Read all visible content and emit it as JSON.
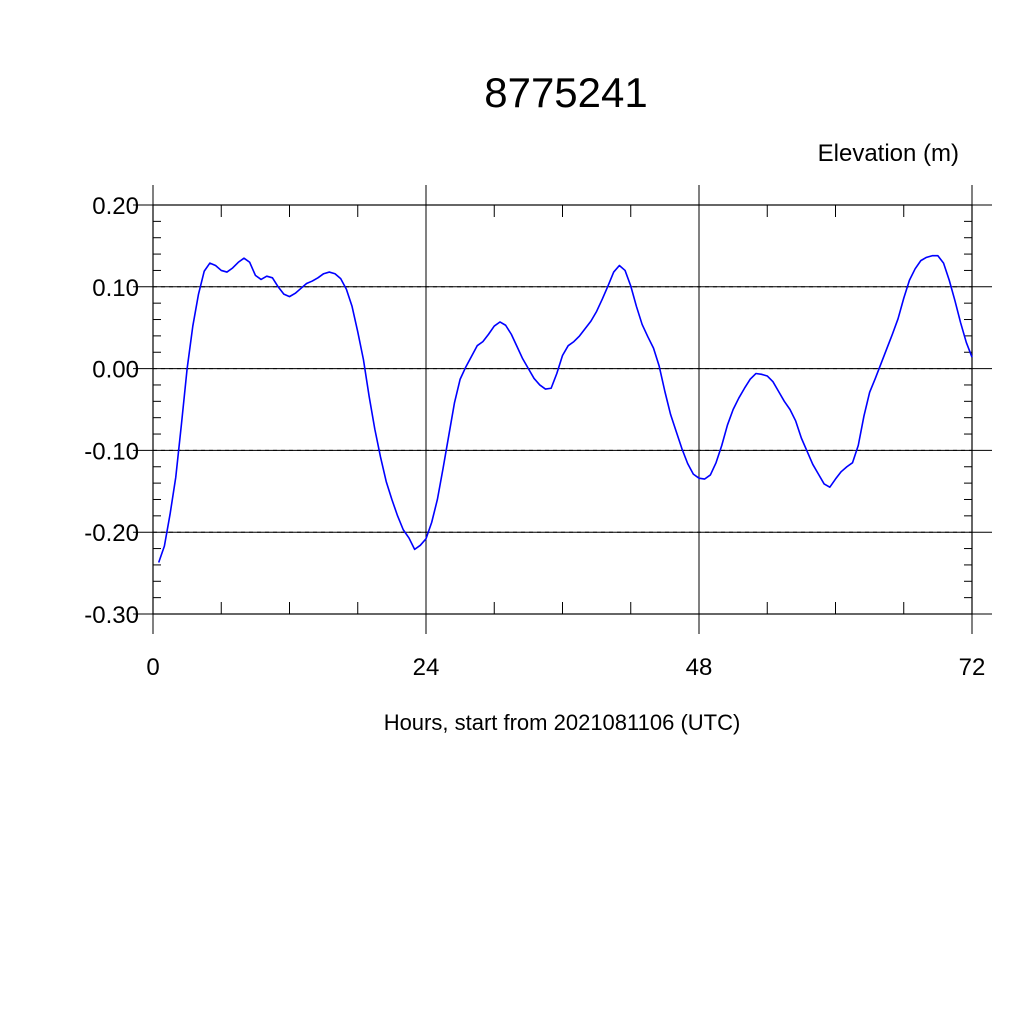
{
  "chart_data": {
    "type": "line",
    "title": "8775241",
    "ylabel": "Elevation (m)",
    "xlabel": "Hours, start from 2021081106 (UTC)",
    "xlim": [
      0,
      72
    ],
    "ylim": [
      -0.3,
      0.2
    ],
    "x_ticks": [
      0,
      24,
      48,
      72
    ],
    "x_tick_labels": [
      "0",
      "24",
      "48",
      "72"
    ],
    "y_ticks": [
      0.2,
      0.1,
      0.0,
      -0.1,
      -0.2,
      -0.3
    ],
    "y_tick_labels": [
      "0.20",
      "0.10",
      "0.00",
      "-0.10",
      "-0.20",
      "-0.30"
    ],
    "grid": true,
    "series": [
      {
        "color": "#0000ff",
        "x": [
          0.5,
          1,
          1.5,
          2,
          2.5,
          3,
          3.5,
          4,
          4.5,
          5,
          5.5,
          6,
          6.5,
          7,
          7.5,
          8,
          8.5,
          9,
          9.5,
          10,
          10.5,
          11,
          11.5,
          12,
          12.5,
          13,
          13.5,
          14,
          14.5,
          15,
          15.5,
          16,
          16.5,
          17,
          17.5,
          18,
          18.5,
          19,
          19.5,
          20,
          20.5,
          21,
          21.5,
          22,
          22.5,
          23,
          23.5,
          24,
          24.5,
          25,
          25.5,
          26,
          26.5,
          27,
          27.5,
          28,
          28.5,
          29,
          29.5,
          30,
          30.5,
          31,
          31.5,
          32,
          32.5,
          33,
          33.5,
          34,
          34.5,
          35,
          35.5,
          36,
          36.5,
          37,
          37.5,
          38,
          38.5,
          39,
          39.5,
          40,
          40.5,
          41,
          41.5,
          42,
          42.5,
          43,
          43.5,
          44,
          44.5,
          45,
          45.5,
          46,
          46.5,
          47,
          47.5,
          48,
          48.5,
          49,
          49.5,
          50,
          50.5,
          51,
          51.5,
          52,
          52.5,
          53,
          53.5,
          54,
          54.5,
          55,
          55.5,
          56,
          56.5,
          57,
          57.5,
          58,
          58.5,
          59,
          59.5,
          60,
          60.5,
          61,
          61.5,
          62,
          62.5,
          63,
          63.5,
          64,
          64.5,
          65,
          65.5,
          66,
          66.5,
          67,
          67.5,
          68,
          68.5,
          69,
          69.5,
          70,
          70.5,
          71,
          71.5,
          72
        ],
        "y": [
          -0.237,
          -0.217,
          -0.178,
          -0.133,
          -0.068,
          0.0,
          0.052,
          0.091,
          0.119,
          0.129,
          0.126,
          0.12,
          0.118,
          0.123,
          0.13,
          0.135,
          0.13,
          0.114,
          0.109,
          0.113,
          0.111,
          0.1,
          0.091,
          0.088,
          0.092,
          0.098,
          0.104,
          0.107,
          0.111,
          0.116,
          0.118,
          0.116,
          0.11,
          0.097,
          0.076,
          0.045,
          0.011,
          -0.034,
          -0.074,
          -0.108,
          -0.138,
          -0.16,
          -0.18,
          -0.197,
          -0.207,
          -0.221,
          -0.216,
          -0.208,
          -0.188,
          -0.16,
          -0.122,
          -0.082,
          -0.042,
          -0.013,
          0.002,
          0.015,
          0.028,
          0.033,
          0.042,
          0.052,
          0.057,
          0.053,
          0.042,
          0.027,
          0.012,
          0.0,
          -0.012,
          -0.02,
          -0.025,
          -0.024,
          -0.006,
          0.016,
          0.028,
          0.033,
          0.04,
          0.049,
          0.058,
          0.07,
          0.085,
          0.101,
          0.118,
          0.126,
          0.12,
          0.101,
          0.076,
          0.054,
          0.039,
          0.025,
          0.003,
          -0.028,
          -0.056,
          -0.077,
          -0.098,
          -0.116,
          -0.129,
          -0.134,
          -0.135,
          -0.13,
          -0.115,
          -0.094,
          -0.069,
          -0.05,
          -0.036,
          -0.024,
          -0.013,
          -0.006,
          -0.007,
          -0.009,
          -0.016,
          -0.028,
          -0.04,
          -0.05,
          -0.064,
          -0.085,
          -0.101,
          -0.117,
          -0.129,
          -0.141,
          -0.145,
          -0.135,
          -0.126,
          -0.12,
          -0.115,
          -0.094,
          -0.058,
          -0.029,
          -0.012,
          0.006,
          0.024,
          0.042,
          0.061,
          0.086,
          0.108,
          0.122,
          0.132,
          0.136,
          0.138,
          0.138,
          0.129,
          0.108,
          0.083,
          0.056,
          0.032,
          0.014
        ]
      }
    ]
  }
}
